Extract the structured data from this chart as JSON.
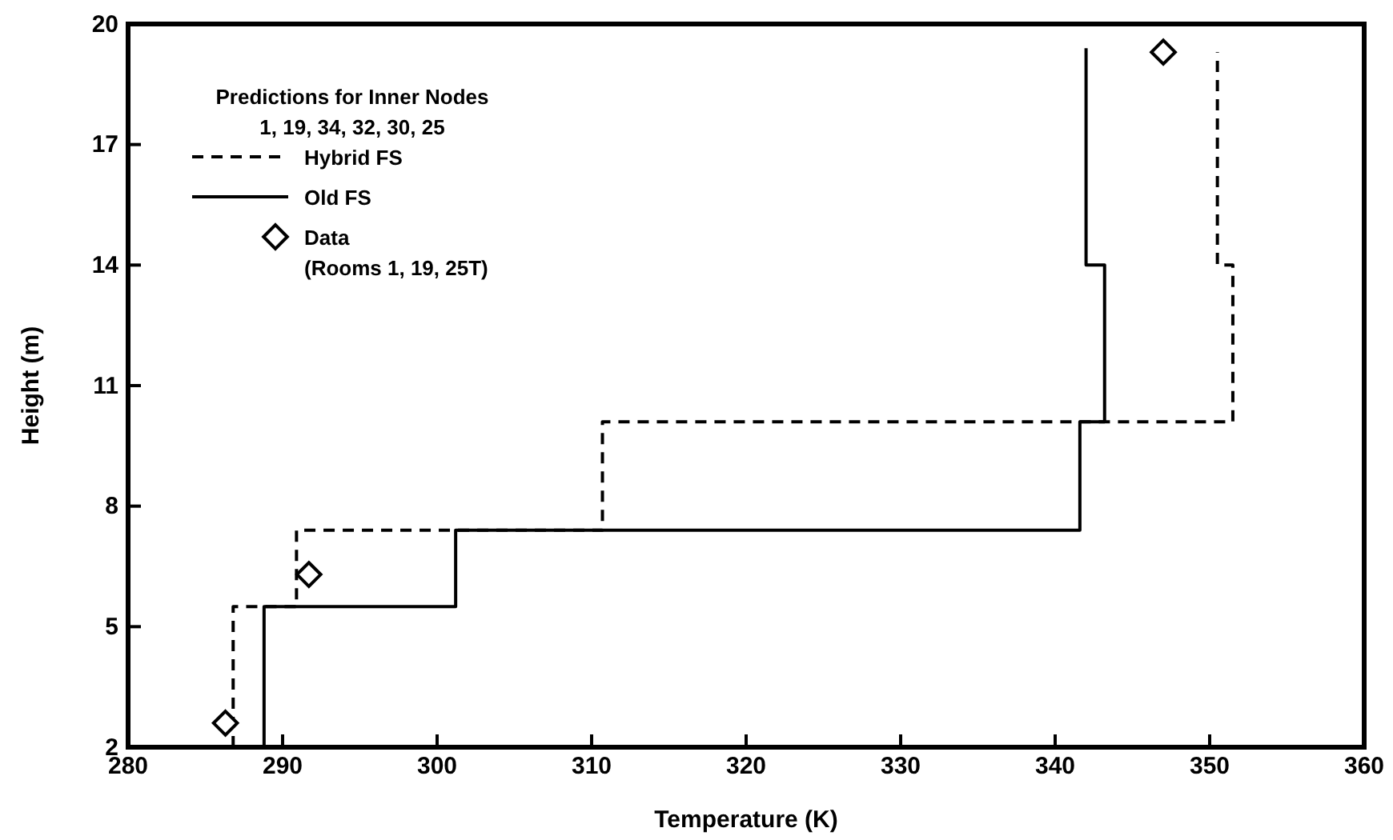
{
  "chart_data": {
    "type": "line",
    "xlabel": "Temperature (K)",
    "ylabel": "Height (m)",
    "legend_title": "Predictions for Inner Nodes\n1, 19, 34, 32, 30, 25",
    "legend": "top left",
    "grid": false,
    "xlim": [
      280,
      360
    ],
    "xticks": [
      280,
      290,
      300,
      310,
      320,
      330,
      340,
      350,
      360
    ],
    "ylim": [
      2,
      20
    ],
    "yticks": [
      2,
      5,
      8,
      11,
      14,
      17,
      20
    ],
    "series": [
      {
        "name": "Hybrid FS",
        "line_style": "dashed",
        "marker": "none",
        "color": "#000000",
        "x": [
          286.8,
          286.8,
          290.9,
          290.9,
          310.7,
          310.7,
          351.5,
          351.5,
          350.5,
          350.5
        ],
        "values": [
          2,
          5.5,
          5.5,
          7.4,
          7.4,
          10.1,
          10.1,
          14,
          14,
          19.3
        ]
      },
      {
        "name": "Old FS",
        "line_style": "solid",
        "marker": "none",
        "color": "#000000",
        "x": [
          288.8,
          288.8,
          301.2,
          301.2,
          341.6,
          341.6,
          343.2,
          343.2,
          342,
          342
        ],
        "values": [
          2,
          5.5,
          5.5,
          7.4,
          7.4,
          10.1,
          10.1,
          14,
          14,
          19.4
        ]
      },
      {
        "name": "Data (Rooms 1, 19, 25T)",
        "type": "scatter",
        "marker": "diamond",
        "color": "#000000",
        "x": [
          286.3,
          291.7,
          347
        ],
        "values": [
          2.6,
          6.3,
          19.3
        ]
      }
    ]
  }
}
